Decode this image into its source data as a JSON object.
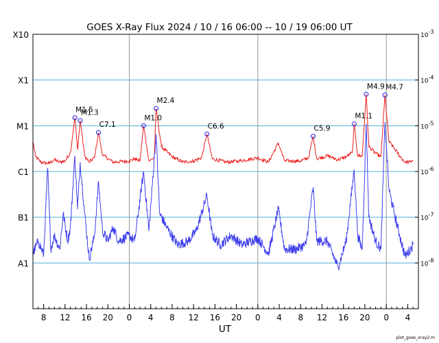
{
  "chart_data": {
    "type": "line",
    "title": "GOES X-Ray Flux   2024 / 10 / 16   06:00 -- 10 / 19   06:00   UT",
    "xlabel": "UT",
    "x_start": "2024-10-16 06:00",
    "x_end": "2024-10-19 06:00",
    "x_tick_times": [
      "2024-10-16 08:00",
      "2024-10-16 12:00",
      "2024-10-16 16:00",
      "2024-10-16 20:00",
      "2024-10-17 00:00",
      "2024-10-17 04:00",
      "2024-10-17 08:00",
      "2024-10-17 12:00",
      "2024-10-17 16:00",
      "2024-10-17 20:00",
      "2024-10-18 00:00",
      "2024-10-18 04:00",
      "2024-10-18 08:00",
      "2024-10-18 12:00",
      "2024-10-18 16:00",
      "2024-10-18 20:00",
      "2024-10-19 00:00",
      "2024-10-19 04:00"
    ],
    "x_tick_labels": [
      "8",
      "12",
      "16",
      "20",
      "0",
      "4",
      "8",
      "12",
      "16",
      "20",
      "0",
      "4",
      "8",
      "12",
      "16",
      "20",
      "0",
      "4"
    ],
    "day_boundaries": [
      "2024-10-17 00:00",
      "2024-10-18 00:00",
      "2024-10-19 00:00"
    ],
    "y_scale": "log",
    "ylim": [
      1e-09,
      0.001
    ],
    "right_axis": {
      "ticks": [
        0.001,
        0.0001,
        1e-05,
        1e-06,
        1e-07,
        1e-08
      ],
      "labels": [
        {
          "base": "10",
          "exp": "-3"
        },
        {
          "base": "10",
          "exp": "-4"
        },
        {
          "base": "10",
          "exp": "-5"
        },
        {
          "base": "10",
          "exp": "-6"
        },
        {
          "base": "10",
          "exp": "-7"
        },
        {
          "base": "10",
          "exp": "-8"
        }
      ]
    },
    "left_axis": {
      "ticks": [
        0.001,
        0.0001,
        1e-05,
        1e-06,
        1e-07,
        1e-08
      ],
      "labels": [
        "X10",
        "X1",
        "M1",
        "C1",
        "B1",
        "A1"
      ]
    },
    "grid": {
      "horizontal": true,
      "color": "#4fb3d9"
    },
    "series": [
      {
        "color": "#ee1c1c",
        "points": [
          [
            "2024-10-16 06:00",
            4.5e-06
          ],
          [
            "2024-10-16 06:30",
            2.1e-06
          ],
          [
            "2024-10-16 07:30",
            1.6e-06
          ],
          [
            "2024-10-16 09:00",
            1.5e-06
          ],
          [
            "2024-10-16 10:00",
            1.8e-06
          ],
          [
            "2024-10-16 11:00",
            1.6e-06
          ],
          [
            "2024-10-16 12:00",
            1.7e-06
          ],
          [
            "2024-10-16 13:00",
            2.6e-06
          ],
          [
            "2024-10-16 13:50",
            1.5e-05
          ],
          [
            "2024-10-16 14:20",
            3e-06
          ],
          [
            "2024-10-16 14:50",
            1.3e-05
          ],
          [
            "2024-10-16 15:40",
            2.2e-06
          ],
          [
            "2024-10-16 16:30",
            1.6e-06
          ],
          [
            "2024-10-16 17:30",
            2e-06
          ],
          [
            "2024-10-16 18:15",
            7.1e-06
          ],
          [
            "2024-10-16 19:00",
            2.3e-06
          ],
          [
            "2024-10-16 21:00",
            1.6e-06
          ],
          [
            "2024-10-17 00:00",
            1.7e-06
          ],
          [
            "2024-10-17 01:00",
            1.9e-06
          ],
          [
            "2024-10-17 02:00",
            1.7e-06
          ],
          [
            "2024-10-17 02:40",
            1e-05
          ],
          [
            "2024-10-17 03:40",
            1.7e-06
          ],
          [
            "2024-10-17 04:40",
            2e-06
          ],
          [
            "2024-10-17 05:00",
            2.4e-05
          ],
          [
            "2024-10-17 06:00",
            3.5e-06
          ],
          [
            "2024-10-17 08:00",
            2.1e-06
          ],
          [
            "2024-10-17 10:00",
            1.6e-06
          ],
          [
            "2024-10-17 12:00",
            1.7e-06
          ],
          [
            "2024-10-17 13:30",
            2e-06
          ],
          [
            "2024-10-17 14:30",
            6.6e-06
          ],
          [
            "2024-10-17 15:30",
            1.9e-06
          ],
          [
            "2024-10-17 18:00",
            1.6e-06
          ],
          [
            "2024-10-17 20:30",
            1.7e-06
          ],
          [
            "2024-10-18 00:00",
            2e-06
          ],
          [
            "2024-10-18 02:00",
            1.6e-06
          ],
          [
            "2024-10-18 03:50",
            4.2e-06
          ],
          [
            "2024-10-18 05:00",
            1.7e-06
          ],
          [
            "2024-10-18 08:00",
            1.7e-06
          ],
          [
            "2024-10-18 09:30",
            2e-06
          ],
          [
            "2024-10-18 10:20",
            5.9e-06
          ],
          [
            "2024-10-18 11:00",
            1.9e-06
          ],
          [
            "2024-10-18 13:00",
            2.2e-06
          ],
          [
            "2024-10-18 15:00",
            1.8e-06
          ],
          [
            "2024-10-18 16:30",
            2.1e-06
          ],
          [
            "2024-10-18 17:40",
            2.6e-06
          ],
          [
            "2024-10-18 18:00",
            1.1e-05
          ],
          [
            "2024-10-18 18:40",
            2.2e-06
          ],
          [
            "2024-10-18 19:30",
            2.2e-06
          ],
          [
            "2024-10-18 20:15",
            4.9e-05
          ],
          [
            "2024-10-18 20:45",
            3.5e-06
          ],
          [
            "2024-10-18 22:00",
            2.5e-06
          ],
          [
            "2024-10-18 23:00",
            2.1e-06
          ],
          [
            "2024-10-18 23:45",
            4.7e-05
          ],
          [
            "2024-10-19 00:30",
            4.5e-06
          ],
          [
            "2024-10-19 01:30",
            3.2e-06
          ],
          [
            "2024-10-19 02:30",
            2.2e-06
          ],
          [
            "2024-10-19 03:30",
            1.6e-06
          ],
          [
            "2024-10-19 04:30",
            1.6e-06
          ],
          [
            "2024-10-19 05:00",
            1.8e-06
          ]
        ]
      },
      {
        "color": "#3d3dee",
        "points": [
          [
            "2024-10-16 06:00",
            1.6e-08
          ],
          [
            "2024-10-16 07:00",
            3e-08
          ],
          [
            "2024-10-16 08:00",
            1.5e-08
          ],
          [
            "2024-10-16 08:45",
            1.2e-06
          ],
          [
            "2024-10-16 09:20",
            2e-08
          ],
          [
            "2024-10-16 10:00",
            4e-08
          ],
          [
            "2024-10-16 11:00",
            2e-08
          ],
          [
            "2024-10-16 11:40",
            1.2e-07
          ],
          [
            "2024-10-16 12:30",
            3e-08
          ],
          [
            "2024-10-16 13:00",
            6e-08
          ],
          [
            "2024-10-16 13:50",
            2.2e-06
          ],
          [
            "2024-10-16 14:20",
            1.5e-07
          ],
          [
            "2024-10-16 14:50",
            1.6e-06
          ],
          [
            "2024-10-16 15:40",
            1.2e-07
          ],
          [
            "2024-10-16 16:30",
            1.2e-08
          ],
          [
            "2024-10-16 17:30",
            4e-08
          ],
          [
            "2024-10-16 18:15",
            6e-07
          ],
          [
            "2024-10-16 19:00",
            5e-08
          ],
          [
            "2024-10-16 20:00",
            3e-08
          ],
          [
            "2024-10-16 21:00",
            6e-08
          ],
          [
            "2024-10-16 22:00",
            3e-08
          ],
          [
            "2024-10-17 00:00",
            4e-08
          ],
          [
            "2024-10-17 01:00",
            3e-08
          ],
          [
            "2024-10-17 02:40",
            1e-06
          ],
          [
            "2024-10-17 03:40",
            5e-08
          ],
          [
            "2024-10-17 05:00",
            6.5e-06
          ],
          [
            "2024-10-17 05:40",
            1.2e-07
          ],
          [
            "2024-10-17 07:00",
            6e-08
          ],
          [
            "2024-10-17 09:00",
            2.5e-08
          ],
          [
            "2024-10-17 11:00",
            3e-08
          ],
          [
            "2024-10-17 12:30",
            5e-08
          ],
          [
            "2024-10-17 14:30",
            3e-07
          ],
          [
            "2024-10-17 15:30",
            4e-08
          ],
          [
            "2024-10-17 17:00",
            2.5e-08
          ],
          [
            "2024-10-17 19:00",
            4e-08
          ],
          [
            "2024-10-17 21:00",
            2.5e-08
          ],
          [
            "2024-10-18 00:00",
            3.5e-08
          ],
          [
            "2024-10-18 02:00",
            1.6e-08
          ],
          [
            "2024-10-18 03:50",
            1.5e-07
          ],
          [
            "2024-10-18 05:00",
            2e-08
          ],
          [
            "2024-10-18 07:00",
            2e-08
          ],
          [
            "2024-10-18 09:00",
            2.5e-08
          ],
          [
            "2024-10-18 10:20",
            4.5e-07
          ],
          [
            "2024-10-18 11:00",
            3e-08
          ],
          [
            "2024-10-18 13:00",
            3e-08
          ],
          [
            "2024-10-18 15:00",
            8e-09
          ],
          [
            "2024-10-18 16:30",
            3e-08
          ],
          [
            "2024-10-18 18:00",
            1.1e-06
          ],
          [
            "2024-10-18 18:40",
            4e-08
          ],
          [
            "2024-10-18 19:30",
            2e-08
          ],
          [
            "2024-10-18 20:15",
            1.1e-05
          ],
          [
            "2024-10-18 20:45",
            1e-07
          ],
          [
            "2024-10-18 22:00",
            3e-08
          ],
          [
            "2024-10-18 23:00",
            2e-08
          ],
          [
            "2024-10-18 23:45",
            1.2e-05
          ],
          [
            "2024-10-19 00:30",
            4e-07
          ],
          [
            "2024-10-19 01:30",
            1.2e-07
          ],
          [
            "2024-10-19 02:30",
            4e-08
          ],
          [
            "2024-10-19 03:30",
            1.4e-08
          ],
          [
            "2024-10-19 04:30",
            2e-08
          ],
          [
            "2024-10-19 05:00",
            2.5e-08
          ]
        ]
      }
    ],
    "flares": [
      {
        "label": "M1.5",
        "time": "2024-10-16 13:50",
        "flux": 1.5e-05
      },
      {
        "label": "M1.3",
        "time": "2024-10-16 14:50",
        "flux": 1.3e-05
      },
      {
        "label": "C7.1",
        "time": "2024-10-16 18:15",
        "flux": 7.1e-06
      },
      {
        "label": "M1.0",
        "time": "2024-10-17 02:40",
        "flux": 1e-05
      },
      {
        "label": "M2.4",
        "time": "2024-10-17 05:00",
        "flux": 2.4e-05
      },
      {
        "label": "C6.6",
        "time": "2024-10-17 14:30",
        "flux": 6.6e-06
      },
      {
        "label": "C5.9",
        "time": "2024-10-18 10:20",
        "flux": 5.9e-06
      },
      {
        "label": "M1.1",
        "time": "2024-10-18 18:00",
        "flux": 1.1e-05
      },
      {
        "label": "M4.9",
        "time": "2024-10-18 20:15",
        "flux": 4.9e-05
      },
      {
        "label": "M4.7",
        "time": "2024-10-18 23:45",
        "flux": 4.7e-05
      }
    ],
    "credit": "plot_goes_xray2.m"
  }
}
